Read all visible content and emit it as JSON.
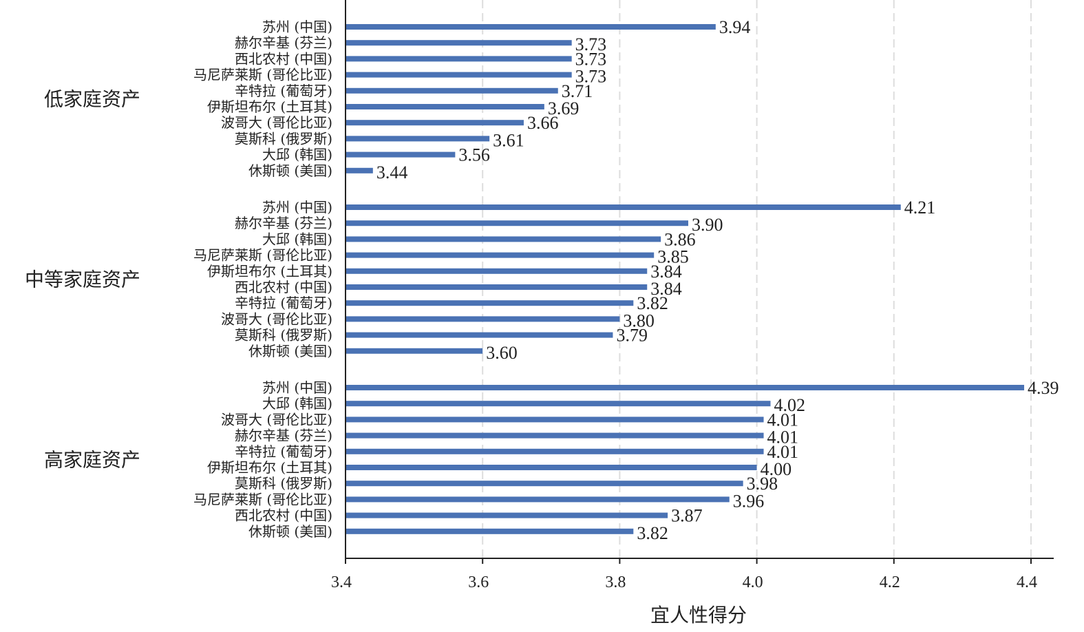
{
  "chart_data": {
    "type": "bar",
    "orientation": "horizontal",
    "xlabel": "宜人性得分",
    "xlim": [
      3.4,
      4.43
    ],
    "xticks": [
      3.4,
      3.6,
      3.8,
      4.0,
      4.2,
      4.4
    ],
    "xtick_labels": [
      "3.4",
      "3.6",
      "3.8",
      "4.0",
      "4.2",
      "4.4"
    ],
    "grid": "vertical dashed",
    "bar_color": "#4a72b4",
    "groups": [
      {
        "name": "低家庭资产",
        "categories": [
          "苏州 (中国)",
          "赫尔辛基 (芬兰)",
          "西北农村 (中国)",
          "马尼萨莱斯 (哥伦比亚)",
          "辛特拉 (葡萄牙)",
          "伊斯坦布尔 (土耳其)",
          "波哥大 (哥伦比亚)",
          "莫斯科 (俄罗斯)",
          "大邱 (韩国)",
          "休斯顿 (美国)"
        ],
        "values": [
          3.94,
          3.73,
          3.73,
          3.73,
          3.71,
          3.69,
          3.66,
          3.61,
          3.56,
          3.44
        ],
        "value_labels": [
          "3.94",
          "3.73",
          "3.73",
          "3.73",
          "3.71",
          "3.69",
          "3.66",
          "3.61",
          "3.56",
          "3.44"
        ]
      },
      {
        "name": "中等家庭资产",
        "categories": [
          "苏州 (中国)",
          "赫尔辛基 (芬兰)",
          "大邱 (韩国)",
          "马尼萨莱斯 (哥伦比亚)",
          "伊斯坦布尔 (土耳其)",
          "西北农村 (中国)",
          "辛特拉 (葡萄牙)",
          "波哥大 (哥伦比亚)",
          "莫斯科 (俄罗斯)",
          "休斯顿 (美国)"
        ],
        "values": [
          4.21,
          3.9,
          3.86,
          3.85,
          3.84,
          3.84,
          3.82,
          3.8,
          3.79,
          3.6
        ],
        "value_labels": [
          "4.21",
          "3.90",
          "3.86",
          "3.85",
          "3.84",
          "3.84",
          "3.82",
          "3.80",
          "3.79",
          "3.60"
        ]
      },
      {
        "name": "高家庭资产",
        "categories": [
          "苏州 (中国)",
          "大邱 (韩国)",
          "波哥大 (哥伦比亚)",
          "赫尔辛基 (芬兰)",
          "辛特拉 (葡萄牙)",
          "伊斯坦布尔 (土耳其)",
          "莫斯科 (俄罗斯)",
          "马尼萨莱斯 (哥伦比亚)",
          "西北农村 (中国)",
          "休斯顿 (美国)"
        ],
        "values": [
          4.39,
          4.02,
          4.01,
          4.01,
          4.01,
          4.0,
          3.98,
          3.96,
          3.87,
          3.82
        ],
        "value_labels": [
          "4.39",
          "4.02",
          "4.01",
          "4.01",
          "4.01",
          "4.00",
          "3.98",
          "3.96",
          "3.87",
          "3.82"
        ]
      }
    ]
  }
}
